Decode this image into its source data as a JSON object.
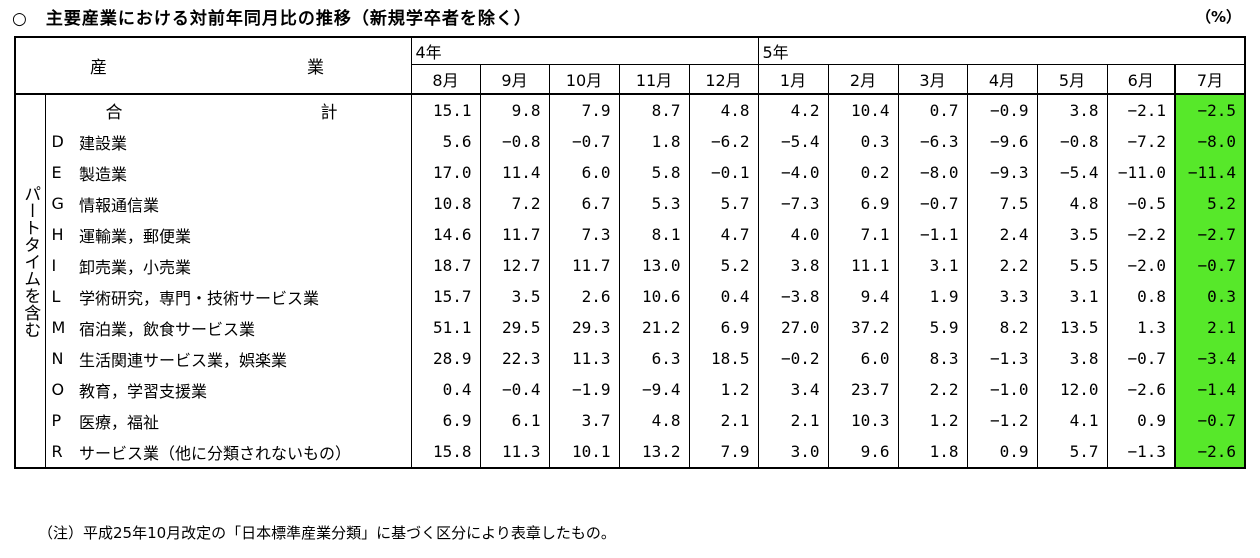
{
  "title": "○　主要産業における対前年同月比の推移（新規学卒者を除く）",
  "unit": "（%）",
  "header": {
    "industry_label_left": "産",
    "industry_label_right": "業",
    "year_4": "4年",
    "year_5": "5年",
    "months": [
      "8月",
      "9月",
      "10月",
      "11月",
      "12月",
      "1月",
      "2月",
      "3月",
      "4月",
      "5月",
      "6月",
      "7月"
    ]
  },
  "side_label": "パートタイムを含む",
  "total": {
    "label_left": "合",
    "label_right": "計",
    "values": [
      "15.1",
      "9.8",
      "7.9",
      "8.7",
      "4.8",
      "4.2",
      "10.4",
      "0.7",
      "−0.9",
      "3.8",
      "−2.1",
      "−2.5"
    ]
  },
  "rows": [
    {
      "code": "D",
      "name": "建設業",
      "values": [
        "5.6",
        "−0.8",
        "−0.7",
        "1.8",
        "−6.2",
        "−5.4",
        "0.3",
        "−6.3",
        "−9.6",
        "−0.8",
        "−7.2",
        "−8.0"
      ]
    },
    {
      "code": "E",
      "name": "製造業",
      "values": [
        "17.0",
        "11.4",
        "6.0",
        "5.8",
        "−0.1",
        "−4.0",
        "0.2",
        "−8.0",
        "−9.3",
        "−5.4",
        "−11.0",
        "−11.4"
      ]
    },
    {
      "code": "G",
      "name": "情報通信業",
      "values": [
        "10.8",
        "7.2",
        "6.7",
        "5.3",
        "5.7",
        "−7.3",
        "6.9",
        "−0.7",
        "7.5",
        "4.8",
        "−0.5",
        "5.2"
      ]
    },
    {
      "code": "H",
      "name": "運輸業，郵便業",
      "values": [
        "14.6",
        "11.7",
        "7.3",
        "8.1",
        "4.7",
        "4.0",
        "7.1",
        "−1.1",
        "2.4",
        "3.5",
        "−2.2",
        "−2.7"
      ]
    },
    {
      "code": "I",
      "name": "卸売業，小売業",
      "values": [
        "18.7",
        "12.7",
        "11.7",
        "13.0",
        "5.2",
        "3.8",
        "11.1",
        "3.1",
        "2.2",
        "5.5",
        "−2.0",
        "−0.7"
      ]
    },
    {
      "code": "L",
      "name": "学術研究，専門・技術サービス業",
      "values": [
        "15.7",
        "3.5",
        "2.6",
        "10.6",
        "0.4",
        "−3.8",
        "9.4",
        "1.9",
        "3.3",
        "3.1",
        "0.8",
        "0.3"
      ]
    },
    {
      "code": "M",
      "name": "宿泊業，飲食サービス業",
      "values": [
        "51.1",
        "29.5",
        "29.3",
        "21.2",
        "6.9",
        "27.0",
        "37.2",
        "5.9",
        "8.2",
        "13.5",
        "1.3",
        "2.1"
      ]
    },
    {
      "code": "N",
      "name": "生活関連サービス業，娯楽業",
      "values": [
        "28.9",
        "22.3",
        "11.3",
        "6.3",
        "18.5",
        "−0.2",
        "6.0",
        "8.3",
        "−1.3",
        "3.8",
        "−0.7",
        "−3.4"
      ]
    },
    {
      "code": "O",
      "name": "教育，学習支援業",
      "values": [
        "0.4",
        "−0.4",
        "−1.9",
        "−9.4",
        "1.2",
        "3.4",
        "23.7",
        "2.2",
        "−1.0",
        "12.0",
        "−2.6",
        "−1.4"
      ]
    },
    {
      "code": "P",
      "name": "医療，福祉",
      "values": [
        "6.9",
        "6.1",
        "3.7",
        "4.8",
        "2.1",
        "2.1",
        "10.3",
        "1.2",
        "−1.2",
        "4.1",
        "0.9",
        "−0.7"
      ]
    },
    {
      "code": "R",
      "name": "サービス業（他に分類されないもの）",
      "values": [
        "15.8",
        "11.3",
        "10.1",
        "13.2",
        "7.9",
        "3.0",
        "9.6",
        "1.8",
        "0.9",
        "5.7",
        "−1.3",
        "−2.6"
      ]
    }
  ],
  "note": "（注）平成25年10月改定の「日本標準産業分類」に基づく区分により表章したもの。",
  "colors": {
    "highlight": "#57e82a"
  }
}
